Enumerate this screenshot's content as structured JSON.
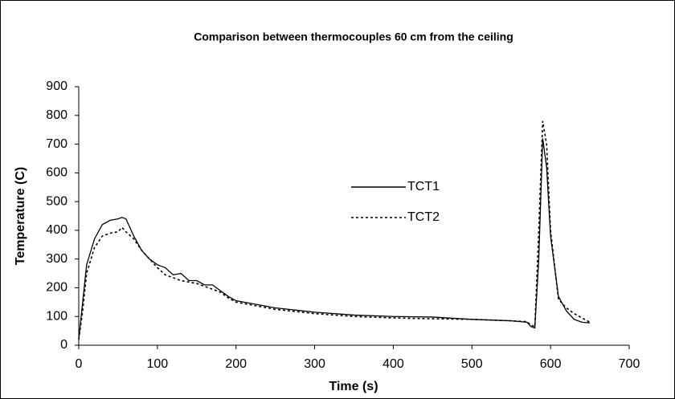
{
  "chart_data": {
    "type": "line",
    "title": "Comparison between thermocouples 60 cm from the ceiling",
    "x_label": "Time (s)",
    "y_label": "Temperature (C)",
    "x": [
      0,
      5,
      10,
      20,
      30,
      40,
      50,
      55,
      60,
      70,
      80,
      90,
      100,
      110,
      120,
      130,
      140,
      150,
      160,
      170,
      180,
      190,
      200,
      220,
      250,
      300,
      350,
      400,
      450,
      500,
      550,
      570,
      575,
      580,
      585,
      590,
      595,
      600,
      610,
      620,
      630,
      640,
      650
    ],
    "series": [
      {
        "name": "TCT1",
        "color": "#000000",
        "style": "solid",
        "values": [
          20,
          150,
          280,
          370,
          420,
          435,
          440,
          445,
          440,
          380,
          330,
          300,
          280,
          270,
          245,
          250,
          225,
          225,
          210,
          210,
          190,
          170,
          155,
          145,
          130,
          115,
          105,
          100,
          98,
          90,
          85,
          80,
          65,
          60,
          300,
          720,
          620,
          380,
          170,
          120,
          90,
          80,
          78
        ]
      },
      {
        "name": "TCT2",
        "color": "#000000",
        "style": "dotted",
        "values": [
          20,
          120,
          250,
          340,
          380,
          390,
          395,
          410,
          395,
          370,
          330,
          300,
          270,
          245,
          235,
          225,
          220,
          215,
          205,
          195,
          185,
          165,
          150,
          140,
          125,
          110,
          100,
          95,
          92,
          90,
          85,
          82,
          70,
          65,
          400,
          780,
          700,
          400,
          160,
          130,
          110,
          95,
          80
        ]
      }
    ],
    "xlim": [
      0,
      700
    ],
    "xticks": [
      0,
      100,
      200,
      300,
      400,
      500,
      600,
      700
    ],
    "ylim": [
      0,
      900
    ],
    "yticks": [
      0,
      100,
      200,
      300,
      400,
      500,
      600,
      700,
      800,
      900
    ],
    "grid": false
  }
}
